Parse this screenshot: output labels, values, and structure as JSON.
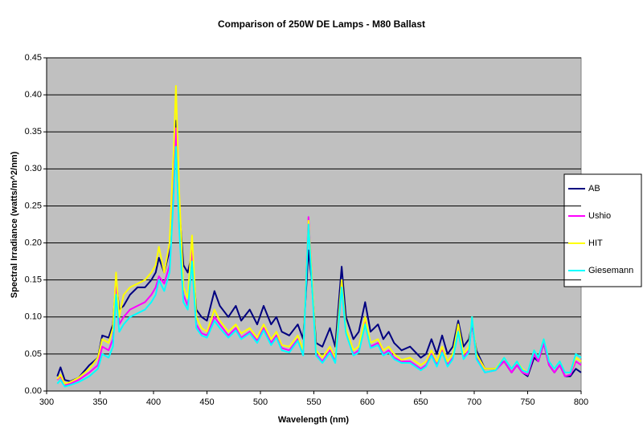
{
  "chart_data": {
    "type": "line",
    "title": "Comparison of 250W DE Lamps - M80 Ballast",
    "x_label": "Wavelength (nm)",
    "y_label": "Spectral Irradiance (watts/m^2/nm)",
    "x": [
      310,
      313,
      317,
      322,
      330,
      340,
      348,
      352,
      358,
      362,
      365,
      368,
      372,
      378,
      385,
      392,
      398,
      402,
      405,
      410,
      415,
      419,
      421,
      424,
      428,
      432,
      436,
      440,
      445,
      450,
      457,
      462,
      470,
      477,
      482,
      490,
      497,
      503,
      510,
      515,
      520,
      527,
      535,
      540,
      545,
      548,
      552,
      558,
      565,
      570,
      576,
      580,
      587,
      592,
      598,
      603,
      610,
      615,
      620,
      625,
      632,
      640,
      650,
      655,
      660,
      665,
      670,
      675,
      680,
      685,
      690,
      695,
      698,
      702,
      710,
      720,
      728,
      735,
      740,
      745,
      750,
      756,
      760,
      765,
      770,
      775,
      780,
      785,
      790,
      795,
      800
    ],
    "series": [
      {
        "name": "AB",
        "color": "#000080",
        "values": [
          0.02,
          0.032,
          0.015,
          0.013,
          0.018,
          0.035,
          0.045,
          0.075,
          0.072,
          0.09,
          0.15,
          0.11,
          0.115,
          0.13,
          0.14,
          0.14,
          0.15,
          0.16,
          0.18,
          0.16,
          0.19,
          0.3,
          0.365,
          0.25,
          0.17,
          0.16,
          0.185,
          0.11,
          0.1,
          0.095,
          0.135,
          0.115,
          0.1,
          0.115,
          0.095,
          0.11,
          0.09,
          0.115,
          0.09,
          0.1,
          0.08,
          0.075,
          0.09,
          0.07,
          0.19,
          0.15,
          0.065,
          0.06,
          0.085,
          0.06,
          0.168,
          0.1,
          0.07,
          0.08,
          0.12,
          0.08,
          0.09,
          0.07,
          0.08,
          0.065,
          0.055,
          0.06,
          0.045,
          0.05,
          0.07,
          0.05,
          0.075,
          0.05,
          0.06,
          0.095,
          0.06,
          0.07,
          0.09,
          0.055,
          0.03,
          0.03,
          0.04,
          0.025,
          0.035,
          0.025,
          0.02,
          0.045,
          0.04,
          0.065,
          0.035,
          0.025,
          0.035,
          0.02,
          0.02,
          0.03,
          0.025
        ]
      },
      {
        "name": "Ushio",
        "color": "#ff00ff",
        "values": [
          0.015,
          0.02,
          0.008,
          0.01,
          0.015,
          0.025,
          0.035,
          0.06,
          0.055,
          0.07,
          0.15,
          0.09,
          0.1,
          0.11,
          0.115,
          0.12,
          0.13,
          0.14,
          0.155,
          0.145,
          0.17,
          0.29,
          0.355,
          0.24,
          0.13,
          0.115,
          0.19,
          0.09,
          0.078,
          0.075,
          0.1,
          0.09,
          0.075,
          0.085,
          0.072,
          0.08,
          0.068,
          0.085,
          0.065,
          0.075,
          0.058,
          0.055,
          0.07,
          0.05,
          0.235,
          0.16,
          0.05,
          0.04,
          0.055,
          0.04,
          0.145,
          0.08,
          0.05,
          0.055,
          0.095,
          0.06,
          0.065,
          0.05,
          0.055,
          0.045,
          0.04,
          0.04,
          0.03,
          0.035,
          0.05,
          0.035,
          0.055,
          0.035,
          0.045,
          0.085,
          0.045,
          0.055,
          0.095,
          0.045,
          0.025,
          0.028,
          0.04,
          0.025,
          0.035,
          0.025,
          0.022,
          0.05,
          0.04,
          0.065,
          0.035,
          0.025,
          0.035,
          0.02,
          0.022,
          0.04,
          0.035
        ]
      },
      {
        "name": "HIT",
        "color": "#ffff00",
        "values": [
          0.016,
          0.022,
          0.01,
          0.012,
          0.018,
          0.03,
          0.045,
          0.07,
          0.065,
          0.085,
          0.16,
          0.1,
          0.13,
          0.14,
          0.145,
          0.15,
          0.16,
          0.17,
          0.195,
          0.16,
          0.2,
          0.33,
          0.412,
          0.27,
          0.14,
          0.125,
          0.21,
          0.1,
          0.085,
          0.08,
          0.11,
          0.095,
          0.08,
          0.09,
          0.078,
          0.085,
          0.072,
          0.09,
          0.07,
          0.08,
          0.062,
          0.06,
          0.075,
          0.055,
          0.23,
          0.16,
          0.055,
          0.045,
          0.06,
          0.045,
          0.15,
          0.085,
          0.055,
          0.06,
          0.1,
          0.065,
          0.07,
          0.055,
          0.06,
          0.05,
          0.042,
          0.045,
          0.035,
          0.04,
          0.055,
          0.04,
          0.06,
          0.04,
          0.05,
          0.09,
          0.05,
          0.06,
          0.1,
          0.05,
          0.03,
          0.03,
          0.045,
          0.03,
          0.04,
          0.03,
          0.025,
          0.055,
          0.045,
          0.07,
          0.04,
          0.03,
          0.04,
          0.025,
          0.025,
          0.045,
          0.04
        ]
      },
      {
        "name": "Giesemann",
        "color": "#00ffff",
        "values": [
          0.01,
          0.015,
          0.006,
          0.008,
          0.012,
          0.02,
          0.03,
          0.05,
          0.045,
          0.06,
          0.13,
          0.08,
          0.09,
          0.1,
          0.105,
          0.11,
          0.12,
          0.13,
          0.15,
          0.135,
          0.16,
          0.27,
          0.33,
          0.22,
          0.12,
          0.11,
          0.175,
          0.085,
          0.075,
          0.072,
          0.095,
          0.085,
          0.072,
          0.082,
          0.07,
          0.078,
          0.065,
          0.082,
          0.062,
          0.072,
          0.055,
          0.052,
          0.068,
          0.048,
          0.225,
          0.15,
          0.048,
          0.038,
          0.052,
          0.038,
          0.14,
          0.078,
          0.048,
          0.052,
          0.09,
          0.058,
          0.062,
          0.048,
          0.052,
          0.043,
          0.038,
          0.038,
          0.028,
          0.033,
          0.048,
          0.033,
          0.052,
          0.033,
          0.043,
          0.08,
          0.043,
          0.052,
          0.1,
          0.043,
          0.025,
          0.028,
          0.045,
          0.03,
          0.04,
          0.028,
          0.025,
          0.055,
          0.045,
          0.07,
          0.04,
          0.03,
          0.04,
          0.025,
          0.025,
          0.05,
          0.045
        ]
      }
    ],
    "xlim": [
      300,
      800
    ],
    "xticks": [
      300,
      350,
      400,
      450,
      500,
      550,
      600,
      650,
      700,
      750,
      800
    ],
    "ylim": [
      0,
      0.45
    ],
    "yticks": [
      {
        "value": 0,
        "label": "0.00"
      },
      {
        "value": 0.05,
        "label": "0.05"
      },
      {
        "value": 0.1,
        "label": "0.10"
      },
      {
        "value": 0.15,
        "label": "0.15"
      },
      {
        "value": 0.2,
        "label": "0.20"
      },
      {
        "value": 0.25,
        "label": "0.25"
      },
      {
        "value": 0.3,
        "label": "0.30"
      },
      {
        "value": 0.35,
        "label": "0.35"
      },
      {
        "value": 0.4,
        "label": "0.40"
      },
      {
        "value": 0.45,
        "label": "0.45"
      }
    ],
    "grid": true,
    "legend": "right"
  }
}
